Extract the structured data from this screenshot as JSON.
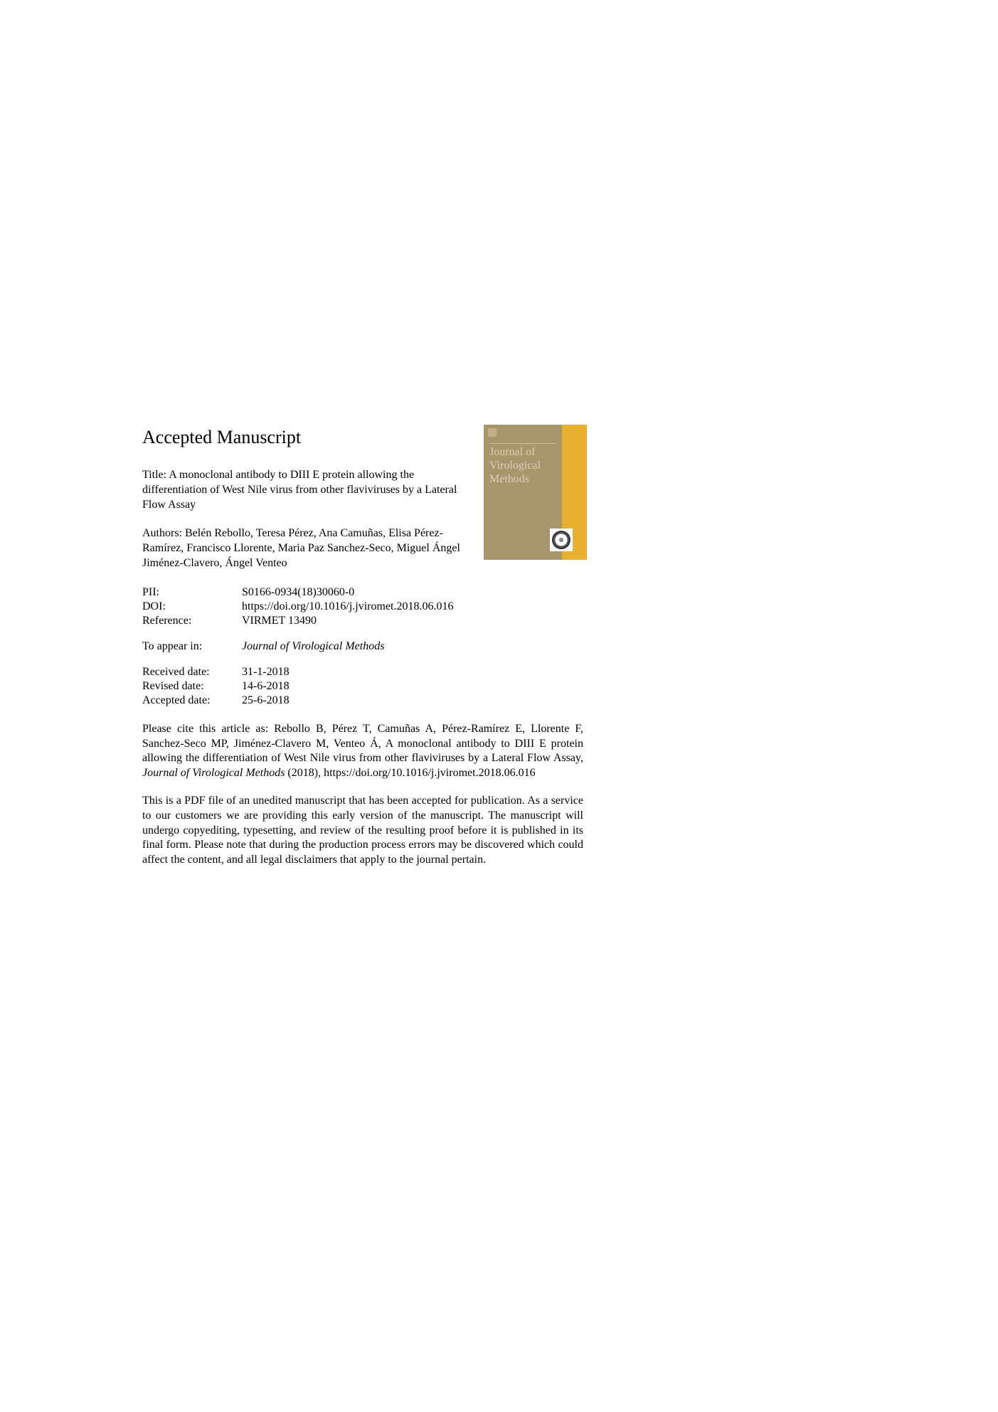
{
  "heading": "Accepted Manuscript",
  "title_prefix": "Title: ",
  "title": "A monoclonal antibody to DIII E protein allowing the differentiation of West Nile virus from other flaviviruses by a Lateral Flow Assay",
  "authors_prefix": "Authors: ",
  "authors": "Belén Rebollo, Teresa Pérez, Ana Camuñas, Elisa Pérez-Ramírez, Francisco Llorente, Maria Paz Sanchez-Seco, Miguel Ángel Jiménez-Clavero, Ángel Venteo",
  "metadata": {
    "pii_label": "PII:",
    "pii_value": "S0166-0934(18)30060-0",
    "doi_label": "DOI:",
    "doi_value": "https://doi.org/10.1016/j.jviromet.2018.06.016",
    "reference_label": "Reference:",
    "reference_value": "VIRMET 13490",
    "appear_label": "To appear in:",
    "appear_value": "Journal of Virological Methods",
    "received_label": "Received date:",
    "received_value": "31-1-2018",
    "revised_label": "Revised date:",
    "revised_value": "14-6-2018",
    "accepted_label": "Accepted date:",
    "accepted_value": "25-6-2018"
  },
  "citation_prefix": "Please cite this article as: Rebollo B, Pérez T, Camuñas A, Pérez-Ramírez E, Llorente F, Sanchez-Seco MP, Jiménez-Clavero M, Venteo Á, A monoclonal antibody to DIII E protein allowing the differentiation of West Nile virus from other flaviviruses by a Lateral Flow Assay, ",
  "citation_journal": "Journal of Virological Methods",
  "citation_suffix": " (2018), https://doi.org/10.1016/j.jviromet.2018.06.016",
  "disclaimer": "This is a PDF file of an unedited manuscript that has been accepted for publication. As a service to our customers we are providing this early version of the manuscript. The manuscript will undergo copyediting, typesetting, and review of the resulting proof before it is published in its final form. Please note that during the production process errors may be discovered which could affect the content, and all legal disclaimers that apply to the journal pertain.",
  "cover": {
    "journal_name": "Journal of Virological Methods",
    "background_color": "#a8956b",
    "accent_color": "#e8b030",
    "text_color": "#d8d0b8"
  }
}
